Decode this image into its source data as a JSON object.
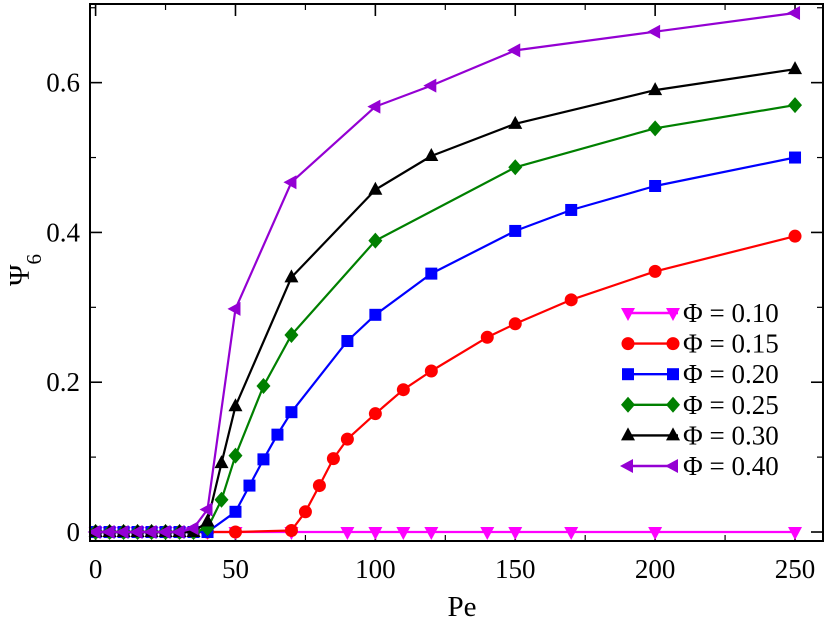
{
  "chart_data": {
    "type": "line",
    "xlabel": "Pe",
    "ylabel": "Ψ",
    "ylabel_subscript": "6",
    "xlim": [
      -2,
      260
    ],
    "ylim": [
      -0.012,
      0.705
    ],
    "xticks": [
      0,
      50,
      100,
      150,
      200,
      250
    ],
    "xtick_labels": [
      "0",
      "50",
      "100",
      "150",
      "200",
      "250"
    ],
    "yticks": [
      0,
      0.2,
      0.4,
      0.6
    ],
    "ytick_labels": [
      "0",
      "0.2",
      "0.4",
      "0.6"
    ],
    "grid": false,
    "legend_position": "lower-right",
    "series": [
      {
        "name": "Φ = 0.10",
        "color": "#ff00ff",
        "marker": "triangle-down",
        "x": [
          0,
          5,
          10,
          15,
          20,
          25,
          30,
          35,
          40,
          50,
          70,
          90,
          100,
          110,
          120,
          140,
          150,
          170,
          200,
          250
        ],
        "y": [
          0,
          0,
          0,
          0,
          0,
          0,
          0,
          0,
          0,
          0,
          0,
          0,
          0,
          0,
          0,
          0,
          0,
          0,
          0,
          0
        ]
      },
      {
        "name": "Φ = 0.15",
        "color": "#ff0000",
        "marker": "circle",
        "x": [
          0,
          5,
          10,
          15,
          20,
          25,
          30,
          35,
          40,
          50,
          70,
          75,
          80,
          85,
          90,
          100,
          110,
          120,
          140,
          150,
          170,
          200,
          250
        ],
        "y": [
          0,
          0,
          0,
          0,
          0,
          0,
          0,
          0,
          0,
          0,
          0.002,
          0.027,
          0.062,
          0.098,
          0.124,
          0.158,
          0.19,
          0.215,
          0.26,
          0.278,
          0.31,
          0.348,
          0.395
        ]
      },
      {
        "name": "Φ = 0.20",
        "color": "#0000ff",
        "marker": "square",
        "x": [
          0,
          5,
          10,
          15,
          20,
          25,
          30,
          35,
          40,
          50,
          55,
          60,
          65,
          70,
          90,
          100,
          120,
          150,
          170,
          200,
          250
        ],
        "y": [
          0,
          0,
          0,
          0,
          0,
          0,
          0,
          0,
          0,
          0.027,
          0.062,
          0.097,
          0.13,
          0.16,
          0.255,
          0.29,
          0.345,
          0.402,
          0.43,
          0.462,
          0.5
        ]
      },
      {
        "name": "Φ = 0.25",
        "color": "#008000",
        "marker": "diamond",
        "x": [
          0,
          5,
          10,
          15,
          20,
          25,
          30,
          35,
          40,
          45,
          50,
          60,
          70,
          100,
          150,
          200,
          250
        ],
        "y": [
          0,
          0,
          0,
          0,
          0,
          0,
          0,
          0,
          0.005,
          0.043,
          0.102,
          0.195,
          0.263,
          0.389,
          0.487,
          0.539,
          0.57
        ]
      },
      {
        "name": "Φ = 0.30",
        "color": "#000000",
        "marker": "triangle-up",
        "x": [
          0,
          5,
          10,
          15,
          20,
          25,
          30,
          35,
          40,
          45,
          50,
          70,
          100,
          120,
          150,
          200,
          250
        ],
        "y": [
          0,
          0,
          0,
          0,
          0,
          0,
          0,
          0,
          0.014,
          0.092,
          0.168,
          0.34,
          0.457,
          0.502,
          0.545,
          0.59,
          0.618
        ]
      },
      {
        "name": "Φ = 0.40",
        "color": "#9400d3",
        "marker": "triangle-left",
        "x": [
          0,
          5,
          10,
          15,
          20,
          25,
          30,
          35,
          40,
          50,
          70,
          100,
          120,
          150,
          200,
          250
        ],
        "y": [
          0,
          0,
          0,
          0,
          0,
          0,
          0,
          0.005,
          0.03,
          0.298,
          0.467,
          0.568,
          0.596,
          0.643,
          0.668,
          0.693
        ]
      }
    ]
  }
}
